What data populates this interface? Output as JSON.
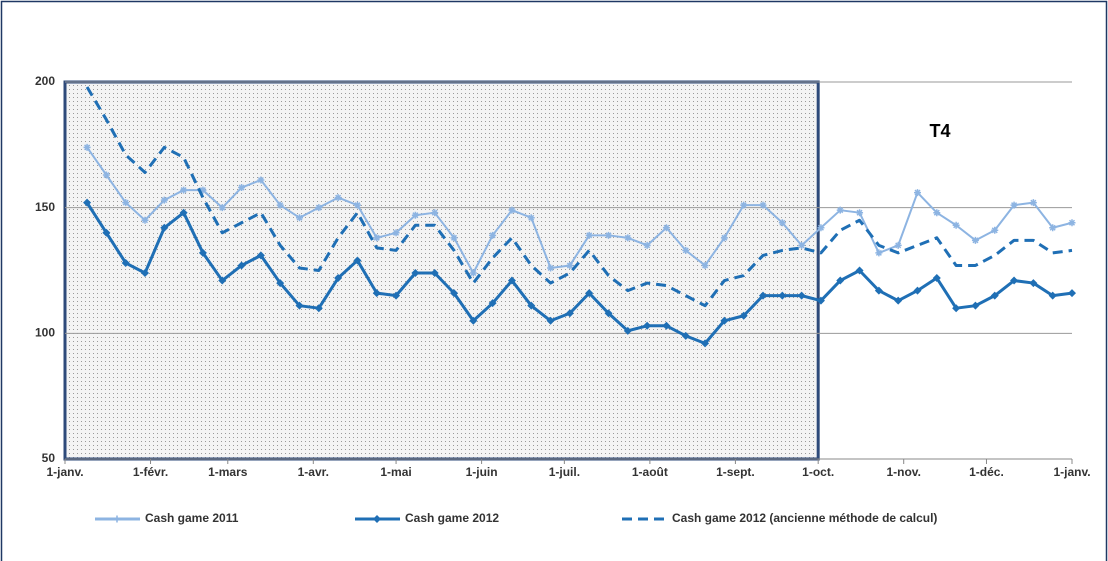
{
  "chart_data": {
    "type": "line",
    "x": [
      8,
      15,
      22,
      29,
      36,
      43,
      50,
      57,
      64,
      71,
      78,
      85,
      92,
      99,
      106,
      113,
      120,
      127,
      134,
      141,
      148,
      155,
      162,
      169,
      176,
      183,
      190,
      197,
      204,
      211,
      218,
      225,
      232,
      239,
      246,
      253,
      260,
      267,
      274,
      281,
      288,
      295,
      302,
      309,
      316,
      323,
      330,
      337,
      344,
      351,
      358,
      365
    ],
    "xlim": [
      0,
      365
    ],
    "xticks": [
      {
        "value": 0,
        "label": "1-janv."
      },
      {
        "value": 31,
        "label": "1-févr."
      },
      {
        "value": 59,
        "label": "1-mars"
      },
      {
        "value": 90,
        "label": "1-avr."
      },
      {
        "value": 120,
        "label": "1-mai"
      },
      {
        "value": 151,
        "label": "1-juin"
      },
      {
        "value": 181,
        "label": "1-juil."
      },
      {
        "value": 212,
        "label": "1-août"
      },
      {
        "value": 243,
        "label": "1-sept."
      },
      {
        "value": 273,
        "label": "1-oct."
      },
      {
        "value": 304,
        "label": "1-nov."
      },
      {
        "value": 334,
        "label": "1-déc."
      },
      {
        "value": 365,
        "label": "1-janv."
      }
    ],
    "ylim": [
      50,
      200
    ],
    "yticks": [
      50,
      100,
      150,
      200
    ],
    "grid": true,
    "legend": "bottom",
    "highlight_xlim": [
      0,
      273
    ],
    "annotation": "T4",
    "series": [
      {
        "name": "Cash game 2011",
        "color": "#8db4e2",
        "style": "solid",
        "marker": "star",
        "values": [
          174,
          163,
          152,
          145,
          153,
          157,
          157,
          150,
          158,
          161,
          151,
          146,
          150,
          154,
          151,
          138,
          140,
          147,
          148,
          138,
          124,
          139,
          149,
          146,
          126,
          127,
          139,
          139,
          138,
          135,
          142,
          133,
          127,
          138,
          151,
          151,
          144,
          135,
          142,
          149,
          148,
          132,
          135,
          156,
          148,
          143,
          137,
          141,
          151,
          152,
          142,
          144
        ]
      },
      {
        "name": "Cash game 2012",
        "color": "#1f6fb5",
        "style": "solid",
        "marker": "diamond",
        "values": [
          152,
          140,
          128,
          124,
          142,
          148,
          132,
          121,
          127,
          131,
          120,
          111,
          110,
          122,
          129,
          116,
          115,
          124,
          124,
          116,
          105,
          112,
          121,
          111,
          105,
          108,
          116,
          108,
          101,
          103,
          103,
          99,
          96,
          105,
          107,
          115,
          115,
          115,
          113,
          121,
          125,
          117,
          113,
          117,
          122,
          110,
          111,
          115,
          121,
          120,
          115,
          116
        ]
      },
      {
        "name": "Cash game 2012 (ancienne méthode de calcul)",
        "color": "#1f6fb5",
        "style": "dashed",
        "marker": "none",
        "values": [
          198,
          185,
          171,
          164,
          174,
          170,
          154,
          140,
          144,
          148,
          135,
          126,
          125,
          138,
          148,
          134,
          133,
          143,
          143,
          133,
          120,
          130,
          138,
          127,
          120,
          124,
          133,
          123,
          117,
          120,
          119,
          115,
          111,
          121,
          123,
          131,
          133,
          134,
          132,
          141,
          145,
          135,
          132,
          135,
          138,
          127,
          127,
          131,
          137,
          137,
          132,
          133
        ]
      }
    ]
  }
}
